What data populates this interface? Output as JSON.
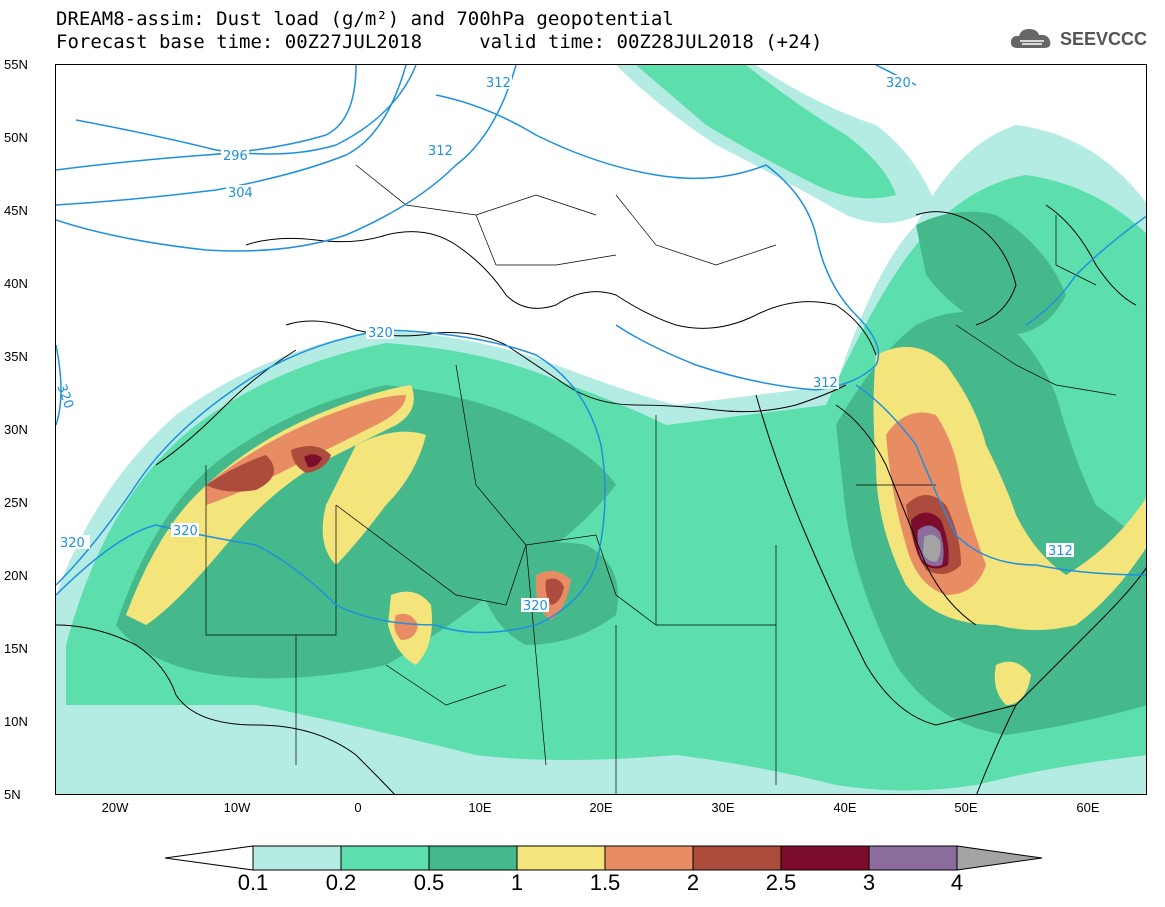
{
  "header": {
    "title_line1": "DREAM8-assim: Dust load (g/m²) and 700hPa geopotential",
    "title_line2": "Forecast base time: 00Z27JUL2018     valid time: 00Z28JUL2018 (+24)",
    "logo_text": "SEEVCCC"
  },
  "map": {
    "lat_labels": [
      "55N",
      "50N",
      "45N",
      "40N",
      "35N",
      "30N",
      "25N",
      "20N",
      "15N",
      "10N",
      "5N"
    ],
    "lon_labels": [
      "20W",
      "10W",
      "0",
      "10E",
      "20E",
      "30E",
      "40E",
      "50E",
      "60E"
    ],
    "contour_labels": [
      "312",
      "296",
      "312",
      "304",
      "320",
      "320",
      "320",
      "320",
      "320",
      "312",
      "312",
      "320"
    ]
  },
  "colorbar": {
    "levels": [
      "0.1",
      "0.2",
      "0.5",
      "1",
      "1.5",
      "2",
      "2.5",
      "3",
      "4"
    ],
    "colors": [
      "#b4ece4",
      "#5cdfac",
      "#46b98c",
      "#f4e47c",
      "#e88c64",
      "#ac4c3c",
      "#7c0c2c",
      "#8c6c9c",
      "#a4a4a4"
    ]
  },
  "palette": {
    "c1": "#b4ece4",
    "c2": "#5cdfac",
    "c3": "#46b98c",
    "c4": "#f4e47c",
    "c5": "#e88c64",
    "c6": "#ac4c3c",
    "c7": "#7c0c2c",
    "c8": "#8c6c9c",
    "c9": "#a4a4a4",
    "contour": "#1e90e0"
  }
}
